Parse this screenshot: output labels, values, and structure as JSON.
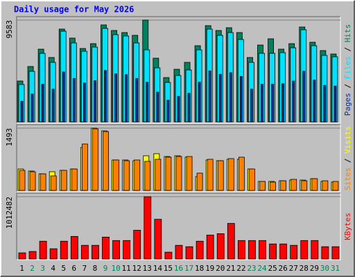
{
  "chart_data": [
    {
      "type": "bar",
      "title": "Daily usage for May 2026",
      "ylim": [
        0,
        9583
      ],
      "yticks": [
        9583
      ],
      "legend_separator": "/",
      "series": [
        {
          "name": "Hits",
          "color": "#00805c",
          "values": [
            3846,
            5215,
            6845,
            6063,
            8735,
            7888,
            6910,
            7366,
            9127,
            8605,
            8410,
            8149,
            9583,
            5997,
            4172,
            4954,
            5606,
            7171,
            9061,
            8605,
            8866,
            8410,
            6063,
            7236,
            7823,
            6845,
            7366,
            8931,
            7497,
            6715,
            6389
          ]
        },
        {
          "name": "Files",
          "color": "#00e0ff",
          "values": [
            3520,
            4759,
            6454,
            5606,
            8540,
            7432,
            6649,
            7041,
            8801,
            8214,
            8084,
            7432,
            6780,
            5085,
            3716,
            4368,
            4889,
            6780,
            8735,
            8149,
            8410,
            7758,
            5606,
            6454,
            6454,
            6519,
            6975,
            8670,
            7171,
            6258,
            6128
          ]
        },
        {
          "name": "Pages",
          "color": "#00309f",
          "values": [
            1940,
            2620,
            3550,
            3080,
            4700,
            4090,
            3660,
            3870,
            4840,
            4520,
            4450,
            4090,
            3730,
            2800,
            2040,
            2400,
            2690,
            3730,
            4800,
            4480,
            4630,
            4270,
            3080,
            3550,
            3550,
            3590,
            3840,
            4770,
            3940,
            3440,
            3370
          ]
        }
      ]
    },
    {
      "type": "bar",
      "ylim": [
        0,
        1493
      ],
      "yticks": [
        1493
      ],
      "legend_separator": "/",
      "series": [
        {
          "name": "Visits",
          "color": "#ffff00",
          "values": [
            514,
            465,
            398,
            448,
            481,
            514,
            1029,
            1493,
            1427,
            730,
            730,
            713,
            830,
            880,
            813,
            830,
            797,
            332,
            730,
            713,
            747,
            747,
            514,
            216,
            216,
            232,
            249,
            249,
            282,
            216,
            199
          ]
        },
        {
          "name": "Sites",
          "color": "#ff8000",
          "values": [
            481,
            448,
            398,
            349,
            481,
            514,
            1112,
            1476,
            1410,
            730,
            713,
            730,
            697,
            747,
            797,
            813,
            813,
            415,
            747,
            713,
            763,
            797,
            514,
            216,
            199,
            232,
            266,
            232,
            282,
            232,
            216
          ]
        }
      ]
    },
    {
      "type": "bar",
      "ylim": [
        0,
        1012482
      ],
      "yticks": [
        1012482
      ],
      "categories": [
        "1",
        "2",
        "3",
        "4",
        "5",
        "6",
        "7",
        "8",
        "9",
        "10",
        "11",
        "12",
        "13",
        "14",
        "15",
        "16",
        "17",
        "18",
        "19",
        "20",
        "21",
        "22",
        "23",
        "24",
        "25",
        "26",
        "27",
        "28",
        "29",
        "30",
        "31"
      ],
      "label_colors": [
        "#000000",
        "#00805c",
        "#00805c",
        "#000000",
        "#000000",
        "#000000",
        "#000000",
        "#000000",
        "#00805c",
        "#00805c",
        "#000000",
        "#000000",
        "#000000",
        "#000000",
        "#000000",
        "#00805c",
        "#00805c",
        "#000000",
        "#000000",
        "#000000",
        "#000000",
        "#000000",
        "#00805c",
        "#00805c",
        "#000000",
        "#000000",
        "#000000",
        "#000000",
        "#000000",
        "#00805c",
        "#00805c"
      ],
      "series": [
        {
          "name": "KBytes",
          "color": "#ff0000",
          "values": [
            100134,
            122386,
            289276,
            166890,
            289276,
            367158,
            222520,
            222520,
            356032,
            300402,
            300402,
            467292,
            1012482,
            645308,
            111260,
            222520,
            200268,
            289276,
            389410,
            411662,
            578552,
            300402,
            300402,
            300402,
            244772,
            244772,
            222520,
            300402,
            300402,
            200268,
            200268
          ]
        }
      ]
    }
  ]
}
